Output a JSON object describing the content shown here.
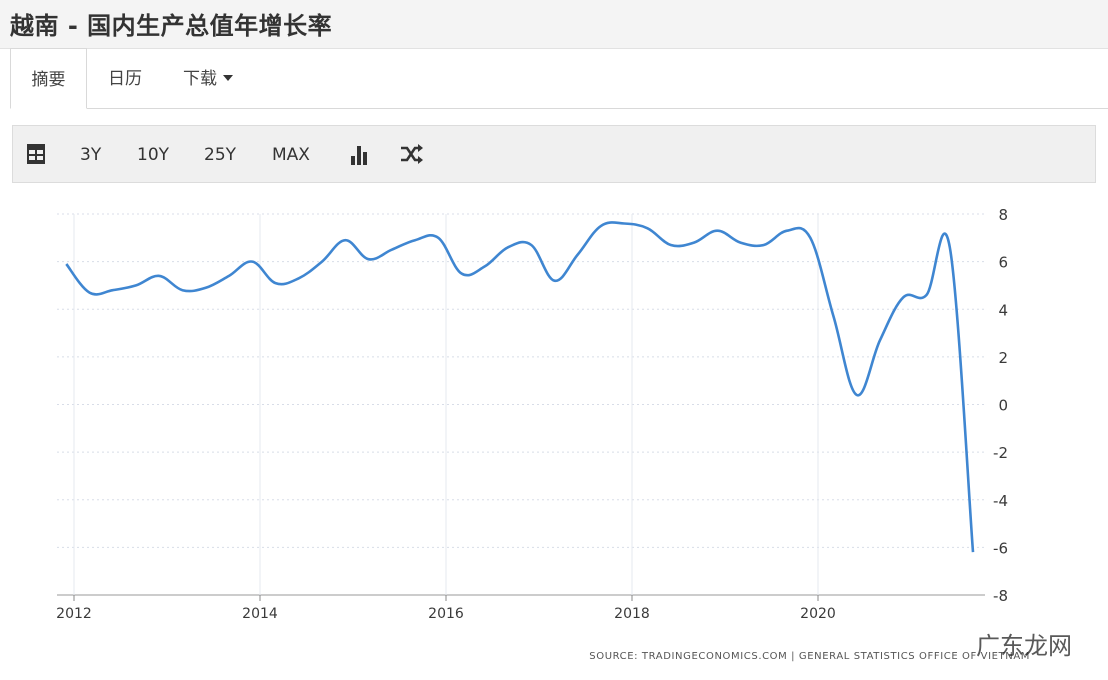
{
  "header": {
    "title": "越南 - 国内生产总值年增长率"
  },
  "tabs": [
    {
      "label": "摘要",
      "active": true
    },
    {
      "label": "日历",
      "active": false
    },
    {
      "label": "下载",
      "active": false
    }
  ],
  "toolbar": {
    "table_icon": "table-icon",
    "ranges": [
      "3Y",
      "10Y",
      "25Y",
      "MAX"
    ],
    "bar_chart_icon": "bar-chart-icon",
    "shuffle_icon": "shuffle-icon"
  },
  "source_text": "SOURCE: TRADINGECONOMICS.COM | GENERAL STATISTICS OFFICE OF VIETNAM",
  "watermark": "广东龙网",
  "colors": {
    "line": "#3f86d1",
    "grid": "#d8dde8",
    "axis": "#3a3a3a"
  },
  "chart_data": {
    "type": "line",
    "title": "越南 - 国内生产总值年增长率",
    "xlabel": "",
    "ylabel": "",
    "ylim": [
      -8,
      8
    ],
    "yticks": [
      8,
      6,
      4,
      2,
      0,
      -2,
      -4,
      -6,
      -8
    ],
    "xtick_labels": [
      "2012",
      "2014",
      "2016",
      "2018",
      "2020"
    ],
    "y_axis_position": "right",
    "grid": true,
    "series": [
      {
        "x": [
          "2011-12",
          "2012-03",
          "2012-06",
          "2012-09",
          "2012-12",
          "2013-03",
          "2013-06",
          "2013-09",
          "2013-12",
          "2014-03",
          "2014-06",
          "2014-09",
          "2014-12",
          "2015-03",
          "2015-06",
          "2015-09",
          "2015-12",
          "2016-03",
          "2016-06",
          "2016-09",
          "2016-12",
          "2017-03",
          "2017-06",
          "2017-09",
          "2017-12",
          "2018-03",
          "2018-06",
          "2018-09",
          "2018-12",
          "2019-03",
          "2019-06",
          "2019-09",
          "2019-12",
          "2020-03",
          "2020-06",
          "2020-09",
          "2020-12",
          "2021-03",
          "2021-06",
          "2021-09"
        ],
        "values": [
          5.9,
          4.7,
          4.8,
          5.0,
          5.4,
          4.8,
          4.9,
          5.4,
          6.0,
          5.1,
          5.3,
          6.0,
          6.9,
          6.1,
          6.5,
          6.9,
          7.0,
          5.5,
          5.8,
          6.6,
          6.7,
          5.2,
          6.3,
          7.5,
          7.6,
          7.4,
          6.7,
          6.8,
          7.3,
          6.8,
          6.7,
          7.3,
          7.0,
          3.7,
          0.4,
          2.7,
          4.5,
          4.6,
          6.6,
          -6.2
        ]
      }
    ]
  }
}
